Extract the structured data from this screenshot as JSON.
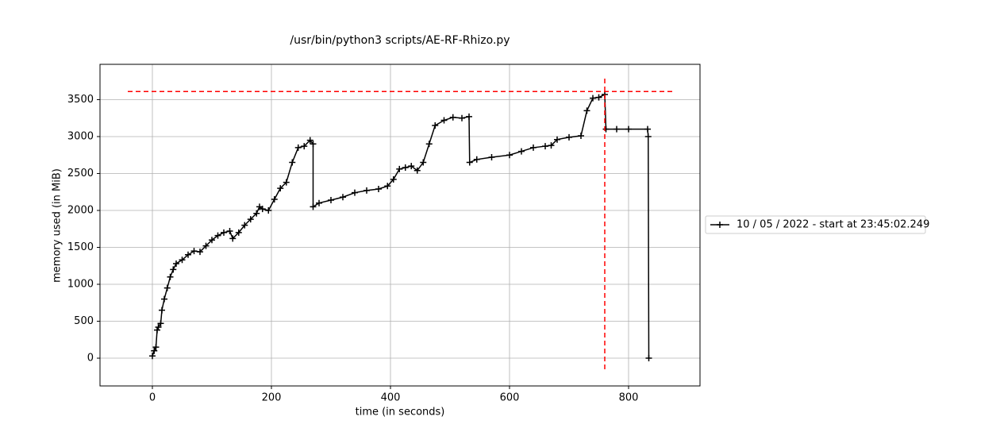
{
  "chart_data": {
    "type": "line",
    "title": "/usr/bin/python3 scripts/AE-RF-Rhizo.py",
    "x_label": "time (in seconds)",
    "y_label": "memory used (in MiB)",
    "x": [
      0,
      3,
      6,
      8,
      10,
      14,
      16,
      20,
      25,
      30,
      35,
      40,
      50,
      60,
      70,
      80,
      90,
      100,
      110,
      120,
      130,
      135,
      145,
      155,
      165,
      175,
      180,
      185,
      195,
      205,
      215,
      225,
      235,
      245,
      255,
      265,
      270,
      270,
      280,
      300,
      320,
      340,
      360,
      380,
      395,
      405,
      415,
      425,
      435,
      445,
      455,
      465,
      475,
      490,
      505,
      520,
      532,
      533,
      545,
      570,
      600,
      620,
      640,
      660,
      670,
      680,
      700,
      720,
      730,
      740,
      750,
      760,
      762,
      780,
      800,
      832,
      833,
      834
    ],
    "series": [
      {
        "name": "10 / 05 / 2022 - start at 23:45:02.249",
        "color": "#000000",
        "values": [
          30,
          100,
          150,
          380,
          420,
          470,
          650,
          800,
          950,
          1100,
          1200,
          1280,
          1330,
          1400,
          1450,
          1440,
          1520,
          1600,
          1660,
          1700,
          1720,
          1620,
          1700,
          1800,
          1880,
          1960,
          2050,
          2020,
          2000,
          2150,
          2300,
          2380,
          2650,
          2850,
          2870,
          2950,
          2900,
          2050,
          2100,
          2140,
          2180,
          2240,
          2270,
          2290,
          2330,
          2420,
          2560,
          2580,
          2600,
          2540,
          2650,
          2900,
          3150,
          3220,
          3260,
          3250,
          3270,
          2650,
          2690,
          2720,
          2750,
          2800,
          2850,
          2870,
          2880,
          2960,
          2990,
          3010,
          3350,
          3520,
          3530,
          3570,
          3100,
          3100,
          3100,
          3100,
          3000,
          0
        ]
      }
    ],
    "peak": {
      "x": 760,
      "y": 3610,
      "color": "#ff0000"
    },
    "xlim": [
      -88,
      920
    ],
    "ylim": [
      -376,
      3978
    ],
    "xticks": [
      0,
      200,
      400,
      600,
      800
    ],
    "yticks": [
      0,
      500,
      1000,
      1500,
      2000,
      2500,
      3000,
      3500
    ],
    "grid": true,
    "legend": "right"
  }
}
